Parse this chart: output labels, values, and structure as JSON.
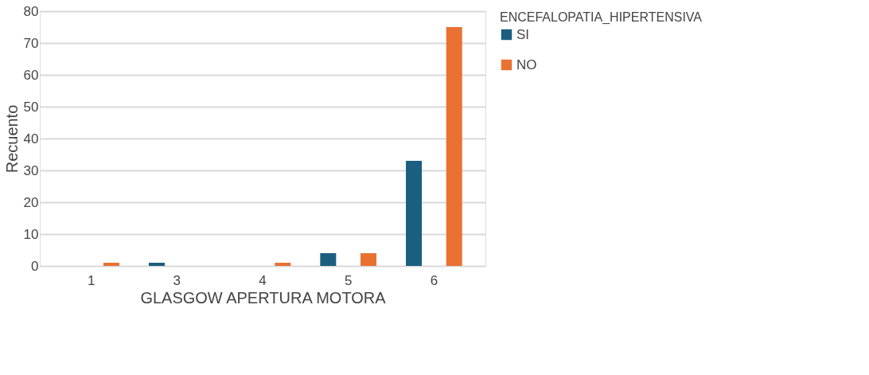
{
  "chart_data": {
    "type": "bar",
    "xlabel": "GLASGOW APERTURA MOTORA",
    "ylabel": "Recuento",
    "legend_title": "ENCEFALOPATIA_HIPERTENSIVA",
    "categories": [
      "1",
      "3",
      "4",
      "5",
      "6"
    ],
    "series": [
      {
        "name": "SI",
        "color": "#1b5e80",
        "values": [
          0,
          1,
          0,
          4,
          33
        ]
      },
      {
        "name": "NO",
        "color": "#e97132",
        "values": [
          1,
          0,
          1,
          4,
          75
        ]
      }
    ],
    "ylim": [
      0,
      80
    ],
    "yticks": [
      0,
      10,
      20,
      30,
      40,
      50,
      60,
      70,
      80
    ],
    "grid": "y",
    "legend": "right"
  }
}
